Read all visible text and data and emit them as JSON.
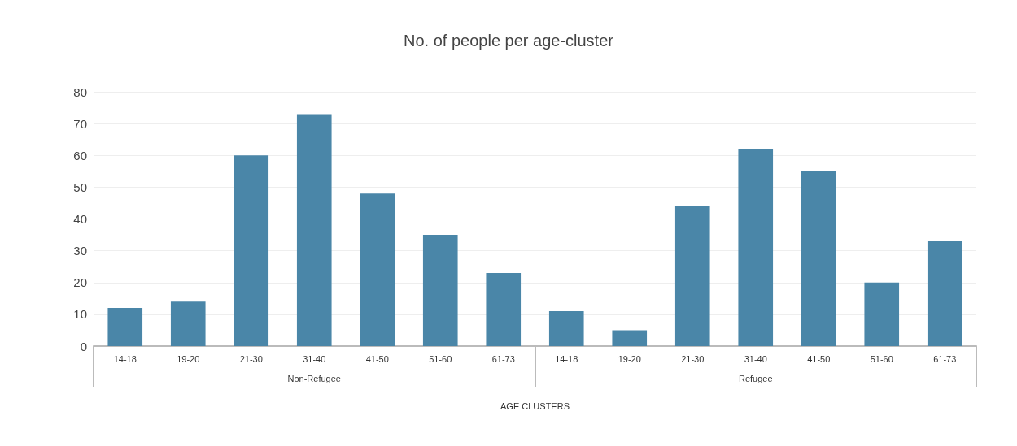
{
  "chart_data": {
    "type": "bar",
    "title": "No. of people per age-cluster",
    "xlabel": "AGE CLUSTERS",
    "categories": [
      "14-18",
      "19-20",
      "21-30",
      "31-40",
      "41-50",
      "51-60",
      "61-73",
      "14-18",
      "19-20",
      "21-30",
      "31-40",
      "41-50",
      "51-60",
      "61-73"
    ],
    "values": [
      12,
      14,
      60,
      73,
      48,
      35,
      23,
      11,
      5,
      44,
      62,
      55,
      20,
      33
    ],
    "color": "#4a86a8",
    "annotations": [
      "Non-Refugee",
      "Refugee"
    ],
    "ylim": [
      0,
      80
    ],
    "yticks": [
      0,
      10,
      20,
      30,
      40,
      50,
      60,
      70,
      80
    ],
    "grid": "y"
  }
}
